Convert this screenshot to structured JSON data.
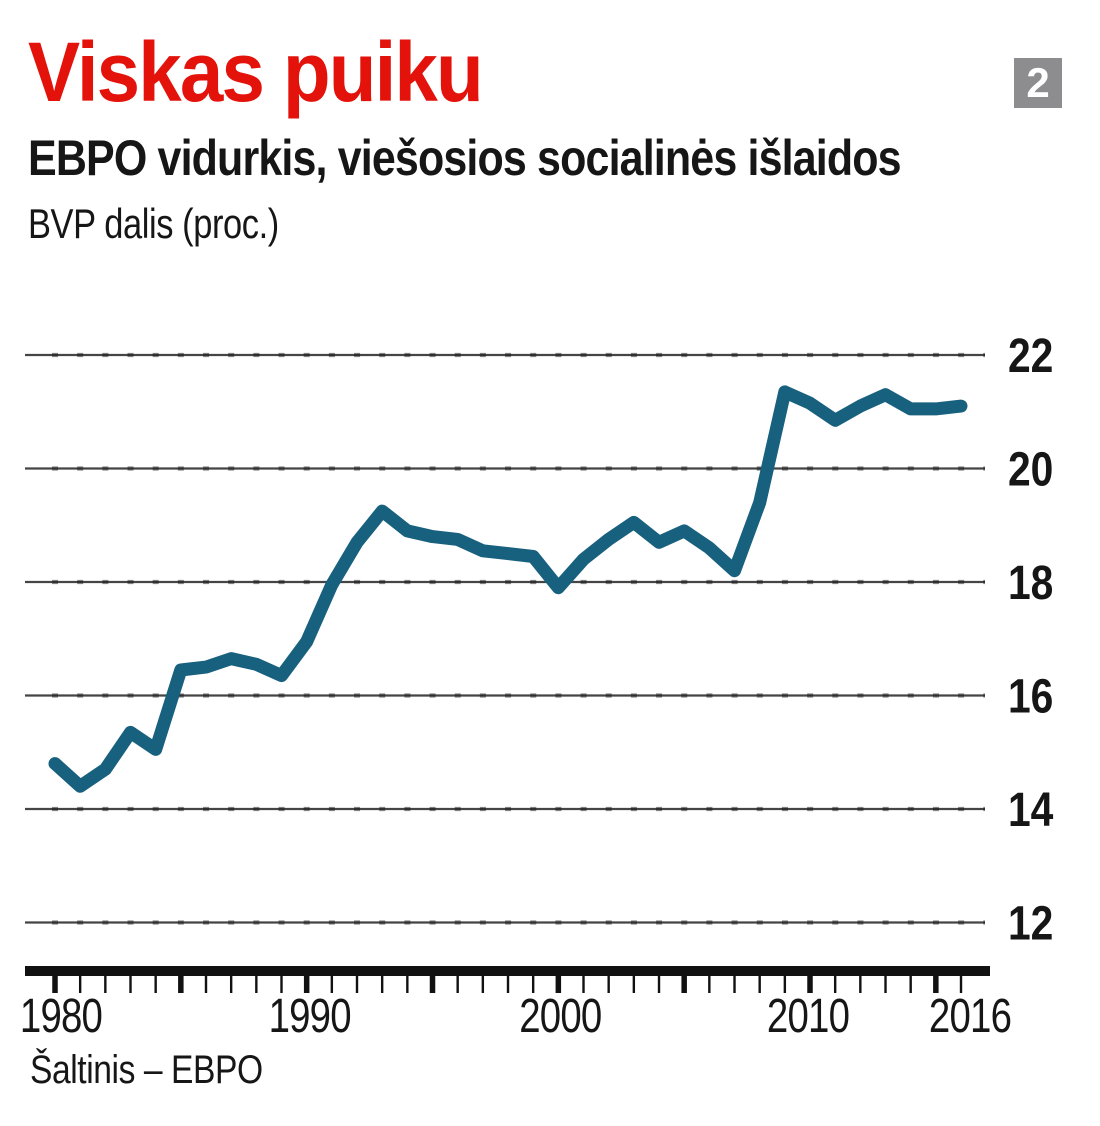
{
  "header": {
    "title": "Viskas puiku",
    "title_color": "#e3120b",
    "badge": "2",
    "badge_bg": "#8d8d8f",
    "subtitle": "EBPO vidurkis, viešosios socialinės išlaidos",
    "unit_label": "BVP dalis (proc.)"
  },
  "source": "Šaltinis – EBPO",
  "chart_data": {
    "type": "line",
    "title": "Viskas puiku",
    "subtitle": "EBPO vidurkis, viešosios socialinės išlaidos",
    "ylabel": "BVP dalis (proc.)",
    "x": [
      1980,
      1981,
      1982,
      1983,
      1984,
      1985,
      1986,
      1987,
      1988,
      1989,
      1990,
      1991,
      1992,
      1993,
      1994,
      1995,
      1996,
      1997,
      1998,
      1999,
      2000,
      2001,
      2002,
      2003,
      2004,
      2005,
      2006,
      2007,
      2008,
      2009,
      2010,
      2011,
      2012,
      2013,
      2014,
      2015,
      2016
    ],
    "series": [
      {
        "name": "Viešosios socialinės išlaidos, BVP dalis (proc.)",
        "values": [
          14.8,
          14.4,
          14.7,
          15.35,
          15.05,
          16.45,
          16.5,
          16.65,
          16.55,
          16.35,
          16.95,
          17.95,
          18.7,
          19.25,
          18.9,
          18.8,
          18.75,
          18.55,
          18.5,
          18.45,
          17.9,
          18.4,
          18.75,
          19.05,
          18.7,
          18.9,
          18.6,
          18.2,
          19.4,
          21.35,
          21.15,
          20.85,
          21.1,
          21.3,
          21.05,
          21.05,
          21.1
        ]
      }
    ],
    "ylim": [
      12,
      22
    ],
    "yticks": [
      22,
      20,
      18,
      16,
      14,
      12
    ],
    "xticks": [
      {
        "label": "1980",
        "year": 1980,
        "dx": 6
      },
      {
        "label": "1990",
        "year": 1990,
        "dx": 3
      },
      {
        "label": "2000",
        "year": 2000,
        "dx": 2
      },
      {
        "label": "2010",
        "year": 2010,
        "dx": -2
      },
      {
        "label": "2016",
        "year": 2016,
        "dx": 9
      }
    ],
    "line_color": "#17607e",
    "grid": true,
    "legend": false
  }
}
